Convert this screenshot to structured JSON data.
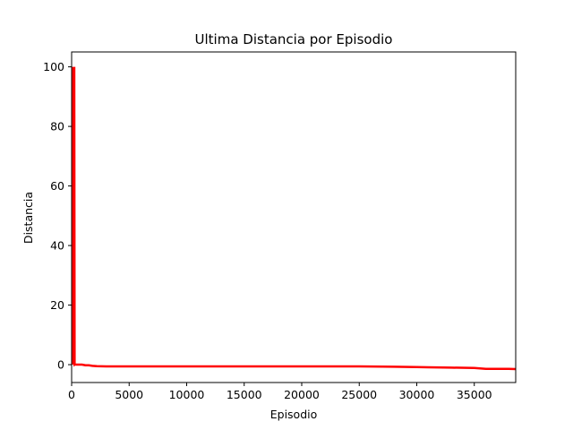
{
  "chart_data": {
    "type": "line",
    "title": "Ultima Distancia por Episodio",
    "xlabel": "Episodio",
    "ylabel": "Distancia",
    "xlim": [
      0,
      38600
    ],
    "ylim": [
      -6,
      105
    ],
    "xticks": [
      0,
      5000,
      10000,
      15000,
      20000,
      25000,
      30000,
      35000
    ],
    "yticks": [
      0,
      20,
      40,
      60,
      80,
      100
    ],
    "grid": false,
    "legend": "none",
    "series": [
      {
        "color": "#ff0000",
        "x": [
          0,
          20,
          40,
          60,
          80,
          100,
          120,
          150,
          180,
          200,
          230,
          260,
          300,
          400,
          600,
          900,
          1200,
          1500,
          1800,
          2200,
          3000,
          5000,
          8000,
          10000,
          15000,
          20000,
          25000,
          28000,
          30000,
          31000,
          33000,
          35000,
          36000,
          38000,
          38600
        ],
        "y": [
          100,
          0,
          100,
          0,
          100,
          0,
          100,
          0,
          100,
          0,
          100,
          0,
          0.1,
          0,
          0,
          0,
          -0.2,
          -0.2,
          -0.4,
          -0.5,
          -0.6,
          -0.6,
          -0.6,
          -0.6,
          -0.6,
          -0.6,
          -0.6,
          -0.7,
          -0.8,
          -0.9,
          -1.0,
          -1.1,
          -1.4,
          -1.4,
          -1.5
        ]
      }
    ]
  }
}
